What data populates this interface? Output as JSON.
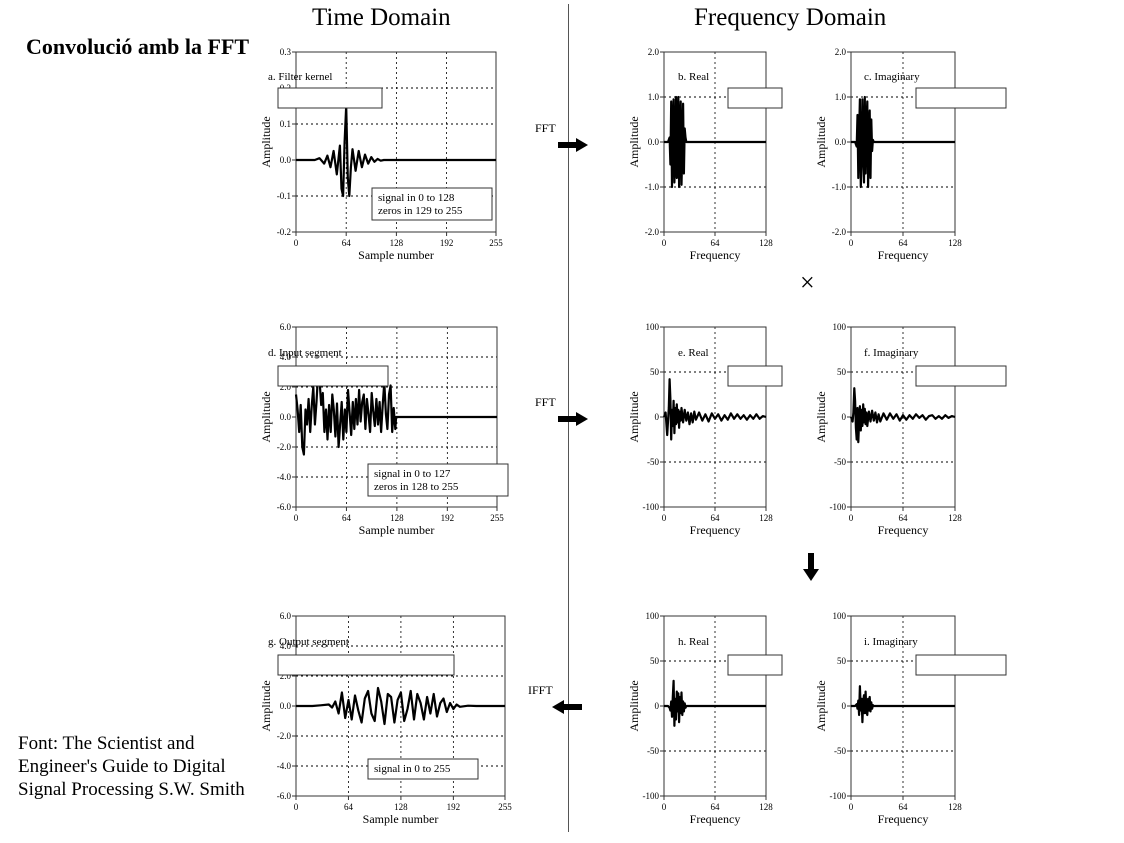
{
  "slide": {
    "title": "Convolució amb la FFT",
    "credit": "Font: The Scientist and Engineer's Guide to Digital Signal Processing S.W. Smith"
  },
  "headings": {
    "time": "Time Domain",
    "frequency": "Frequency Domain"
  },
  "operators": {
    "fft1": "FFT",
    "fft2": "FFT",
    "ifft": "IFFT",
    "multiply": "×"
  },
  "colors": {
    "line": "#000000",
    "axis": "#333333",
    "grid": "#000000",
    "divider": "#555555"
  },
  "icons": [
    "arrow-right-icon",
    "arrow-right-icon",
    "arrow-left-icon",
    "arrow-down-icon"
  ],
  "chart_data": [
    {
      "id": "a",
      "type": "line",
      "label": "a.  Filter kernel",
      "xlabel": "Sample number",
      "ylabel": "Amplitude",
      "xlim": [
        0,
        255
      ],
      "ylim": [
        -0.2,
        0.3
      ],
      "xticks": [
        0,
        64,
        128,
        192,
        255
      ],
      "xtick_labels": [
        "0",
        "64",
        "128",
        "192",
        "255"
      ],
      "yticks": [
        -0.2,
        -0.1,
        0,
        0.1,
        0.2,
        0.3
      ],
      "ytick_labels": [
        "-0.2",
        "-0.1",
        "0.0",
        "0.1",
        "0.2",
        "0.3"
      ],
      "note": [
        "signal in 0 to 128",
        "zeros in 129 to 255"
      ],
      "x": [
        0,
        8,
        16,
        24,
        30,
        36,
        40,
        44,
        48,
        52,
        56,
        58,
        60,
        62,
        64,
        66,
        68,
        70,
        72,
        76,
        80,
        84,
        88,
        92,
        96,
        100,
        104,
        108,
        112,
        116,
        120,
        124,
        128,
        160,
        200,
        255
      ],
      "y": [
        0,
        0,
        0,
        0,
        0.005,
        -0.01,
        0.012,
        -0.02,
        0.025,
        -0.04,
        0.04,
        -0.08,
        -0.1,
        0.05,
        0.15,
        -0.05,
        -0.1,
        -0.02,
        0.03,
        -0.03,
        0.025,
        -0.02,
        0.015,
        -0.01,
        0.008,
        -0.005,
        0.003,
        -0.002,
        0,
        0,
        0,
        0,
        0,
        0,
        0,
        0
      ]
    },
    {
      "id": "b",
      "type": "line",
      "label": "b.  Real",
      "xlabel": "Frequency",
      "ylabel": "Amplitude",
      "xlim": [
        0,
        128
      ],
      "ylim": [
        -2,
        2
      ],
      "xticks": [
        0,
        64,
        128
      ],
      "xtick_labels": [
        "0",
        "64",
        "128"
      ],
      "yticks": [
        -2,
        -1,
        0,
        1,
        2
      ],
      "ytick_labels": [
        "-2.0",
        "-1.0",
        "0.0",
        "1.0",
        "2.0"
      ],
      "x": [
        0,
        5,
        7,
        8,
        9,
        10,
        11,
        12,
        13,
        14,
        15,
        16,
        17,
        18,
        19,
        20,
        21,
        22,
        23,
        24,
        25,
        26,
        27,
        28,
        30,
        40,
        60,
        90,
        128
      ],
      "y": [
        0,
        0,
        0.1,
        -0.5,
        0.9,
        -1,
        0.3,
        0.95,
        -0.9,
        -0.3,
        1,
        -0.8,
        -0.5,
        1,
        -1,
        0.4,
        0.9,
        -0.95,
        -0.2,
        0.85,
        -0.7,
        0.3,
        0.1,
        0,
        0,
        0,
        0,
        0,
        0
      ]
    },
    {
      "id": "c",
      "type": "line",
      "label": "c.  Imaginary",
      "xlabel": "Frequency",
      "ylabel": "Amplitude",
      "xlim": [
        0,
        128
      ],
      "ylim": [
        -2,
        2
      ],
      "xticks": [
        0,
        64,
        128
      ],
      "xtick_labels": [
        "0",
        "64",
        "128"
      ],
      "yticks": [
        -2,
        -1,
        0,
        1,
        2
      ],
      "ytick_labels": [
        "-2.0",
        "-1.0",
        "0.0",
        "1.0",
        "2.0"
      ],
      "x": [
        0,
        5,
        7,
        8,
        9,
        10,
        11,
        12,
        13,
        14,
        15,
        16,
        17,
        18,
        19,
        20,
        21,
        22,
        23,
        24,
        25,
        26,
        27,
        28,
        30,
        40,
        60,
        90,
        128
      ],
      "y": [
        0,
        0,
        -0.1,
        0.6,
        -0.8,
        0.2,
        0.95,
        -1,
        -0.4,
        0.95,
        -0.2,
        -0.9,
        1,
        -0.7,
        0.4,
        0.9,
        -1,
        0.3,
        0.7,
        -0.8,
        0.5,
        -0.2,
        0.05,
        0,
        0,
        0,
        0,
        0,
        0
      ]
    },
    {
      "id": "d",
      "type": "line",
      "label": "d.  Input segment",
      "xlabel": "Sample number",
      "ylabel": "Amplitude",
      "xlim": [
        0,
        255
      ],
      "ylim": [
        -6,
        6
      ],
      "xticks": [
        0,
        64,
        128,
        192,
        255
      ],
      "xtick_labels": [
        "0",
        "64",
        "128",
        "192",
        "255"
      ],
      "yticks": [
        -6,
        -4,
        -2,
        0,
        2,
        4,
        6
      ],
      "ytick_labels": [
        "-6.0",
        "-4.0",
        "-2.0",
        "0.0",
        "2.0",
        "4.0",
        "6.0"
      ],
      "note": [
        "signal in 0 to 127",
        "zeros in 128 to 255"
      ],
      "x": [
        0,
        2,
        4,
        6,
        8,
        10,
        12,
        14,
        16,
        18,
        20,
        22,
        24,
        26,
        28,
        30,
        32,
        34,
        36,
        38,
        40,
        42,
        44,
        46,
        48,
        50,
        52,
        54,
        56,
        58,
        60,
        62,
        64,
        66,
        68,
        70,
        72,
        74,
        76,
        78,
        80,
        82,
        84,
        86,
        88,
        90,
        92,
        94,
        96,
        98,
        100,
        102,
        104,
        106,
        108,
        110,
        112,
        114,
        116,
        118,
        120,
        122,
        124,
        126,
        127,
        130,
        160,
        200,
        255
      ],
      "y": [
        1.5,
        0.5,
        -1,
        0.8,
        -2,
        -2.5,
        0.5,
        -0.5,
        1.2,
        -1,
        0.8,
        2,
        -0.5,
        1,
        2.9,
        2.4,
        0.8,
        1.6,
        -1,
        0.5,
        -1.5,
        0.8,
        -1,
        1.5,
        0.5,
        -1.3,
        0.9,
        -2,
        -0.5,
        1,
        -1.5,
        0.5,
        -1,
        1.8,
        0.3,
        -1.2,
        1,
        -0.8,
        1.2,
        -0.5,
        1.8,
        -0.3,
        1,
        1.5,
        -0.8,
        1.2,
        0.2,
        -1,
        1.6,
        0.4,
        -0.6,
        1.2,
        -0.5,
        1,
        -1,
        0.8,
        2.3,
        0.2,
        -0.8,
        1.5,
        2.1,
        -1,
        0.6,
        -0.8,
        0,
        0,
        0,
        0,
        0
      ]
    },
    {
      "id": "e",
      "type": "line",
      "label": "e.  Real",
      "xlabel": "Frequency",
      "ylabel": "Amplitude",
      "xlim": [
        0,
        128
      ],
      "ylim": [
        -100,
        100
      ],
      "xticks": [
        0,
        64,
        128
      ],
      "xtick_labels": [
        "0",
        "64",
        "128"
      ],
      "yticks": [
        -100,
        -50,
        0,
        50,
        100
      ],
      "ytick_labels": [
        "-100",
        "-50",
        "0",
        "50",
        "100"
      ],
      "x": [
        0,
        2,
        4,
        6,
        7,
        8,
        9,
        10,
        11,
        12,
        13,
        14,
        15,
        16,
        17,
        18,
        19,
        20,
        21,
        22,
        24,
        26,
        28,
        30,
        32,
        34,
        36,
        38,
        40,
        44,
        48,
        52,
        56,
        60,
        64,
        68,
        72,
        76,
        80,
        84,
        88,
        92,
        96,
        100,
        104,
        108,
        112,
        116,
        120,
        124,
        128
      ],
      "y": [
        0,
        5,
        -20,
        10,
        42,
        20,
        -25,
        8,
        -10,
        18,
        -18,
        10,
        -8,
        14,
        -6,
        8,
        -12,
        6,
        -4,
        10,
        -6,
        8,
        -4,
        5,
        -8,
        4,
        -6,
        6,
        -3,
        5,
        -4,
        3,
        -5,
        4,
        -2,
        3,
        -4,
        2,
        -3,
        4,
        -2,
        3,
        -2,
        2,
        -3,
        2,
        -2,
        3,
        -2,
        1,
        0
      ]
    },
    {
      "id": "f",
      "type": "line",
      "label": "f.  Imaginary",
      "xlabel": "Frequency",
      "ylabel": "Amplitude",
      "xlim": [
        0,
        128
      ],
      "ylim": [
        -100,
        100
      ],
      "xticks": [
        0,
        64,
        128
      ],
      "xtick_labels": [
        "0",
        "64",
        "128"
      ],
      "yticks": [
        -100,
        -50,
        0,
        50,
        100
      ],
      "ytick_labels": [
        "-100",
        "-50",
        "0",
        "50",
        "100"
      ],
      "x": [
        0,
        2,
        3,
        4,
        5,
        6,
        7,
        8,
        9,
        10,
        11,
        12,
        13,
        14,
        15,
        16,
        17,
        18,
        19,
        20,
        22,
        24,
        26,
        28,
        30,
        32,
        34,
        36,
        40,
        44,
        48,
        52,
        56,
        60,
        64,
        68,
        72,
        76,
        80,
        84,
        88,
        92,
        96,
        100,
        104,
        108,
        112,
        116,
        120,
        124,
        128
      ],
      "y": [
        0,
        -5,
        5,
        32,
        18,
        -12,
        -25,
        10,
        -28,
        -5,
        12,
        -15,
        8,
        -10,
        14,
        -6,
        9,
        -8,
        5,
        -10,
        6,
        -5,
        7,
        -4,
        5,
        -6,
        3,
        -5,
        4,
        -3,
        4,
        -2,
        3,
        -4,
        2,
        -3,
        2,
        -2,
        3,
        -1,
        2,
        -3,
        1,
        2,
        -2,
        1,
        -2,
        2,
        -1,
        1,
        0
      ]
    },
    {
      "id": "g",
      "type": "line",
      "label": "g.  Output segment",
      "xlabel": "Sample number",
      "ylabel": "Amplitude",
      "xlim": [
        0,
        255
      ],
      "ylim": [
        -6,
        6
      ],
      "xticks": [
        0,
        64,
        128,
        192,
        255
      ],
      "xtick_labels": [
        "0",
        "64",
        "128",
        "192",
        "255"
      ],
      "yticks": [
        -6,
        -4,
        -2,
        0,
        2,
        4,
        6
      ],
      "ytick_labels": [
        "-6.0",
        "-4.0",
        "-2.0",
        "0.0",
        "2.0",
        "4.0",
        "6.0"
      ],
      "note": [
        "signal in 0 to 255"
      ],
      "x": [
        0,
        20,
        30,
        40,
        44,
        48,
        52,
        56,
        60,
        64,
        68,
        72,
        76,
        80,
        84,
        88,
        92,
        96,
        100,
        104,
        108,
        112,
        116,
        120,
        124,
        128,
        132,
        136,
        140,
        144,
        148,
        152,
        156,
        160,
        164,
        168,
        172,
        176,
        180,
        184,
        188,
        192,
        196,
        200,
        210,
        220,
        255
      ],
      "y": [
        0,
        0,
        0.05,
        0.1,
        -0.1,
        0.3,
        -0.5,
        0.9,
        -0.8,
        0.4,
        -0.9,
        0.7,
        -0.3,
        -1.1,
        0.5,
        1,
        -0.5,
        -1,
        1.2,
        0.3,
        -1.2,
        0.8,
        0.6,
        -1.1,
        0.4,
        0.9,
        -1,
        -0.2,
        1,
        -0.9,
        0.8,
        0.2,
        -0.9,
        0.6,
        -0.5,
        0.8,
        -0.7,
        0.2,
        0.5,
        -0.4,
        0.2,
        -0.2,
        0.1,
        -0.05,
        0.02,
        0,
        0
      ]
    },
    {
      "id": "h",
      "type": "line",
      "label": "h.  Real",
      "xlabel": "Frequency",
      "ylabel": "Amplitude",
      "xlim": [
        0,
        128
      ],
      "ylim": [
        -100,
        100
      ],
      "xticks": [
        0,
        64,
        128
      ],
      "xtick_labels": [
        "0",
        "64",
        "128"
      ],
      "yticks": [
        -100,
        -50,
        0,
        50,
        100
      ],
      "ytick_labels": [
        "-100",
        "-50",
        "0",
        "50",
        "100"
      ],
      "x": [
        0,
        5,
        7,
        8,
        9,
        10,
        11,
        12,
        13,
        14,
        15,
        16,
        17,
        18,
        19,
        20,
        21,
        22,
        23,
        24,
        25,
        26,
        27,
        28,
        30,
        40,
        60,
        90,
        128
      ],
      "y": [
        0,
        0,
        -2,
        -5,
        5,
        -12,
        10,
        28,
        -22,
        8,
        -15,
        16,
        -6,
        14,
        -18,
        10,
        -8,
        15,
        -10,
        5,
        -6,
        3,
        -2,
        0,
        0,
        0,
        0,
        0,
        0
      ]
    },
    {
      "id": "i",
      "type": "line",
      "label": "i.  Imaginary",
      "xlabel": "Frequency",
      "ylabel": "Amplitude",
      "xlim": [
        0,
        128
      ],
      "ylim": [
        -100,
        100
      ],
      "xticks": [
        0,
        64,
        128
      ],
      "xtick_labels": [
        "0",
        "64",
        "128"
      ],
      "yticks": [
        -100,
        -50,
        0,
        50,
        100
      ],
      "ytick_labels": [
        "-100",
        "-50",
        "0",
        "50",
        "100"
      ],
      "x": [
        0,
        5,
        7,
        8,
        9,
        10,
        11,
        12,
        13,
        14,
        15,
        16,
        17,
        18,
        19,
        20,
        21,
        22,
        23,
        24,
        25,
        26,
        27,
        28,
        30,
        40,
        60,
        90,
        128
      ],
      "y": [
        0,
        0,
        2,
        -3,
        6,
        -10,
        22,
        -5,
        8,
        -18,
        5,
        12,
        -8,
        16,
        -6,
        -10,
        8,
        -5,
        10,
        -6,
        4,
        -3,
        1,
        0,
        0,
        0,
        0,
        0,
        0
      ]
    }
  ]
}
